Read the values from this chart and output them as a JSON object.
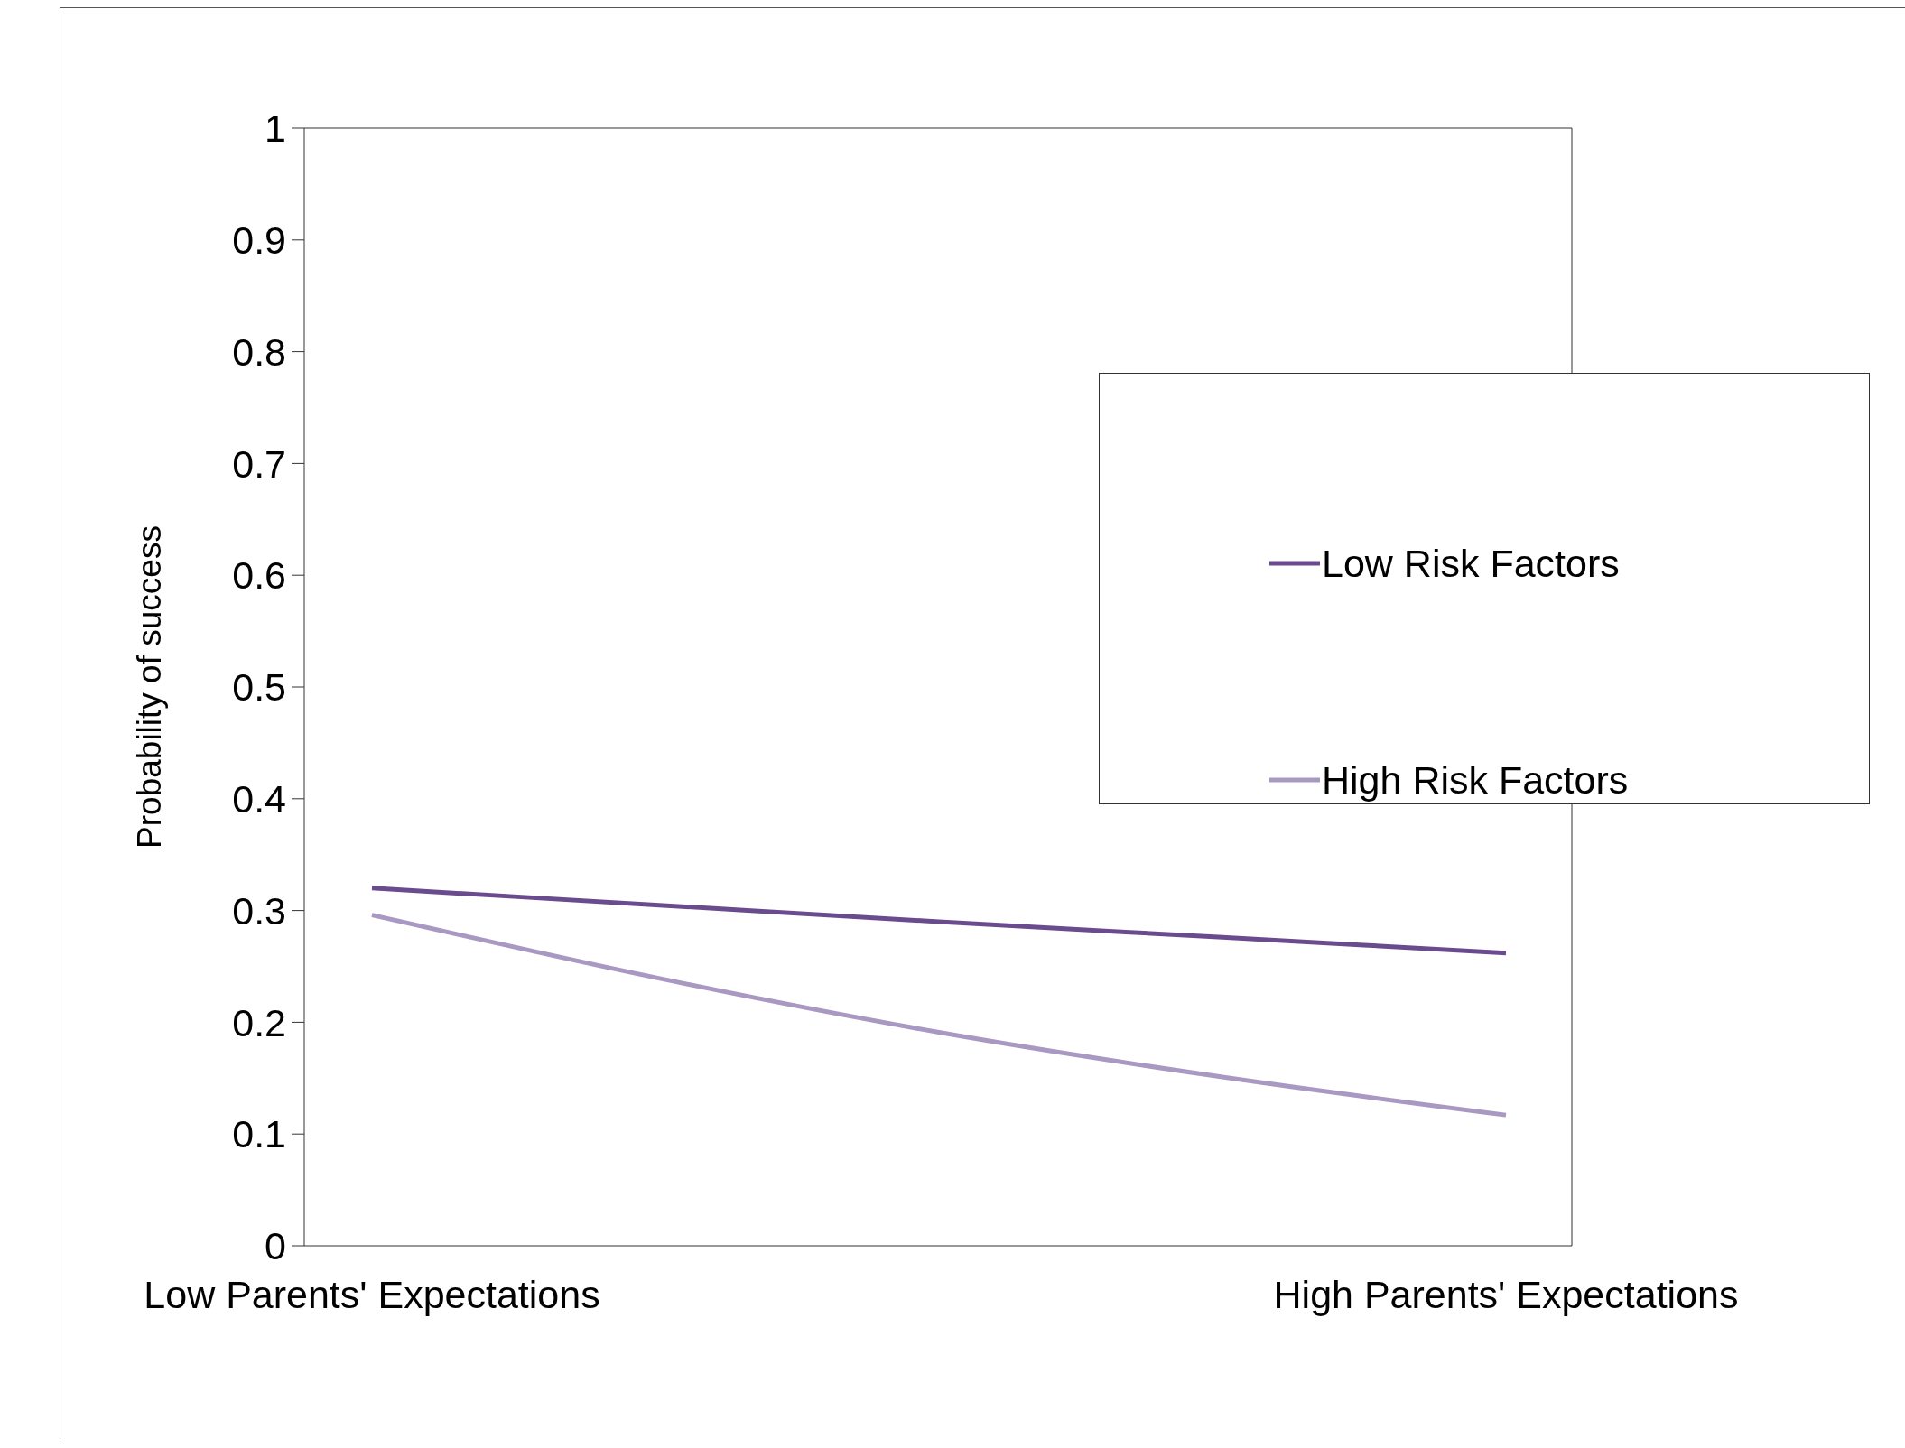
{
  "chart_data": {
    "type": "line",
    "ylabel": "Probability of success",
    "categories": [
      "Low Parents' Expectations",
      null,
      null,
      null,
      "High Parents' Expectations"
    ],
    "ylim": [
      0,
      1
    ],
    "yticks": [
      0,
      0.1,
      0.2,
      0.3,
      0.4,
      0.5,
      0.6,
      0.7,
      0.8,
      0.9,
      1
    ],
    "series": [
      {
        "name": "Low Risk Factors",
        "color": "#6a4c8e",
        "values": [
          0.32,
          0.305,
          0.29,
          0.276,
          0.262
        ]
      },
      {
        "name": "High Risk Factors",
        "color": "#a898c2",
        "values": [
          0.296,
          0.24,
          0.191,
          0.151,
          0.117
        ]
      }
    ],
    "legend": "right",
    "grid": false,
    "marker": "none",
    "line_style": "solid"
  }
}
